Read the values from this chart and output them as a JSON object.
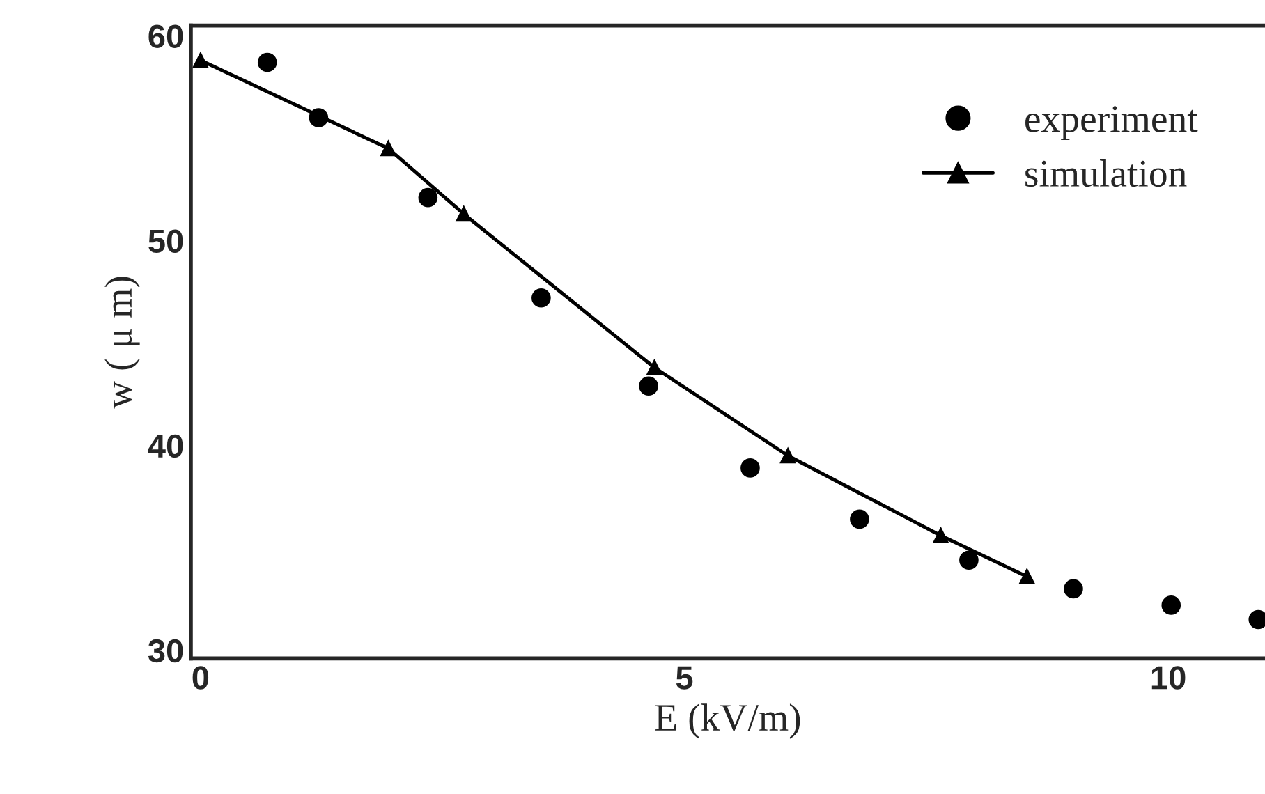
{
  "chart_data": {
    "type": "scatter",
    "xlabel": "E (kV/m)",
    "ylabel": "w ( μ m)",
    "xlim": [
      -0.1,
      11.0
    ],
    "xticks": [
      0,
      5,
      10
    ],
    "ylim": [
      29.6,
      60.5
    ],
    "yticks": [
      30,
      40,
      50,
      60
    ],
    "legend": "top right",
    "grid": false,
    "series": [
      {
        "name": "experiment",
        "marker": "circle",
        "color": "#000000",
        "x": [
          0.69,
          1.22,
          2.35,
          3.52,
          4.63,
          5.68,
          6.81,
          7.94,
          9.02,
          10.03,
          10.93
        ],
        "values": [
          58.7,
          56.0,
          52.1,
          47.2,
          42.9,
          38.9,
          36.4,
          34.4,
          33.0,
          32.2,
          31.5
        ]
      },
      {
        "name": "simulation",
        "type": "line",
        "marker": "triangle",
        "line_style": "solid",
        "color": "#000000",
        "x": [
          0.0,
          1.94,
          2.72,
          4.69,
          6.07,
          7.65,
          8.54
        ],
        "values": [
          58.8,
          54.5,
          51.3,
          43.8,
          39.5,
          35.6,
          33.6
        ]
      }
    ]
  }
}
